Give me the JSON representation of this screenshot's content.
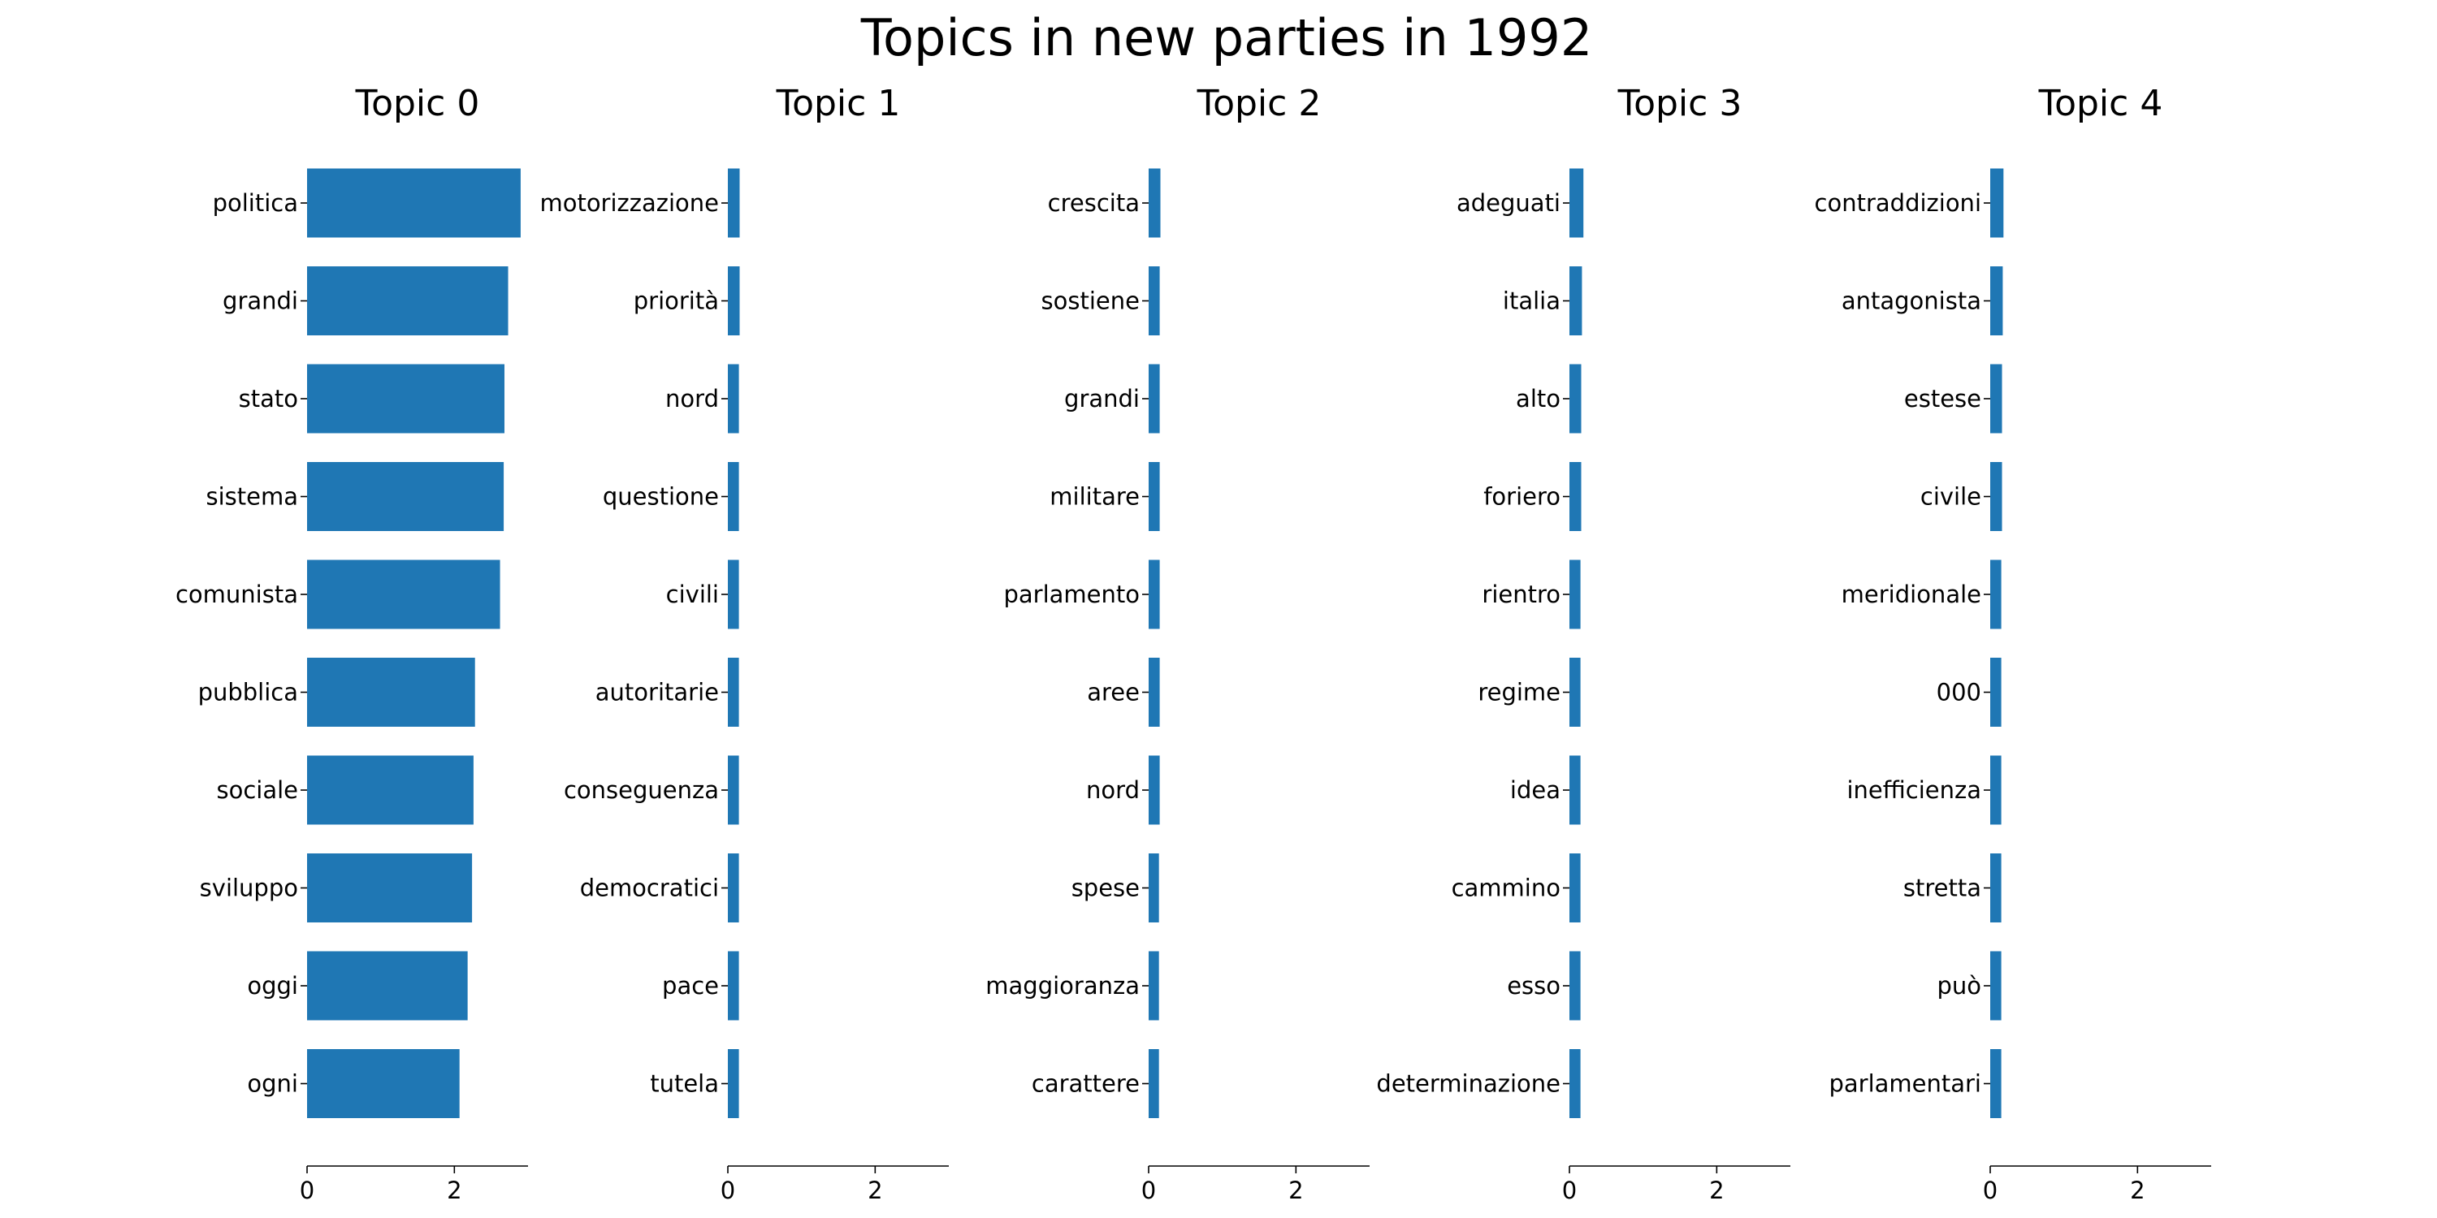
{
  "chart_data": {
    "type": "bar",
    "orientation": "horizontal",
    "title": "Topics in new parties in 1992",
    "xlim": [
      0,
      3.0
    ],
    "xticks": [
      0,
      2
    ],
    "grid": false,
    "bar_color": "#1f77b4",
    "panels": [
      {
        "title": "Topic 0",
        "categories": [
          "politica",
          "grandi",
          "stato",
          "sistema",
          "comunista",
          "pubblica",
          "sociale",
          "sviluppo",
          "oggi",
          "ogni"
        ],
        "values": [
          2.9,
          2.73,
          2.68,
          2.67,
          2.62,
          2.28,
          2.26,
          2.24,
          2.18,
          2.07
        ]
      },
      {
        "title": "Topic 1",
        "categories": [
          "motorizzazione",
          "priorità",
          "nord",
          "questione",
          "civili",
          "autoritarie",
          "conseguenza",
          "democratici",
          "pace",
          "tutela"
        ],
        "values": [
          0.16,
          0.16,
          0.15,
          0.15,
          0.15,
          0.15,
          0.15,
          0.15,
          0.15,
          0.15
        ]
      },
      {
        "title": "Topic 2",
        "categories": [
          "crescita",
          "sostiene",
          "grandi",
          "militare",
          "parlamento",
          "aree",
          "nord",
          "spese",
          "maggioranza",
          "carattere"
        ],
        "values": [
          0.16,
          0.15,
          0.15,
          0.15,
          0.15,
          0.15,
          0.15,
          0.14,
          0.14,
          0.14
        ]
      },
      {
        "title": "Topic 3",
        "categories": [
          "adeguati",
          "italia",
          "alto",
          "foriero",
          "rientro",
          "regime",
          "idea",
          "cammino",
          "esso",
          "determinazione"
        ],
        "values": [
          0.19,
          0.17,
          0.16,
          0.16,
          0.15,
          0.15,
          0.15,
          0.15,
          0.15,
          0.15
        ]
      },
      {
        "title": "Topic 4",
        "categories": [
          "contraddizioni",
          "antagonista",
          "estese",
          "civile",
          "meridionale",
          "000",
          "inefficienza",
          "stretta",
          "può",
          "parlamentari"
        ],
        "values": [
          0.18,
          0.17,
          0.16,
          0.16,
          0.15,
          0.15,
          0.15,
          0.15,
          0.15,
          0.15
        ]
      }
    ]
  }
}
